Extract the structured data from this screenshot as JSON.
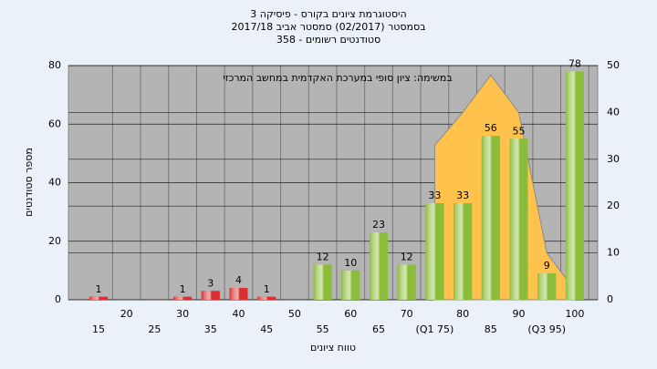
{
  "chart_data": {
    "type": "bar",
    "title": "היסטוגרמת ציונים בקורס - פיסיקה 3",
    "subtitle": "בסמסטר (02/2017) סמסטר אביב 2017/18",
    "subtitle2": "סטודנטים רשומים - 358",
    "annotation": "במשימה: ציון סופי במערכת האקדמית במחשב המרכזי",
    "y_label": "מספר סטודנטים",
    "x_label": "טווח ציונים",
    "categories": [
      "15",
      "20",
      "25",
      "30",
      "35",
      "40",
      "45",
      "50",
      "55",
      "60",
      "65",
      "70",
      "(Q1 75)",
      "80",
      "85",
      "90",
      "(Q3 95)",
      "100"
    ],
    "values": [
      1,
      null,
      null,
      1,
      3,
      4,
      1,
      null,
      12,
      10,
      23,
      12,
      33,
      33,
      56,
      55,
      9,
      78
    ],
    "colors": [
      "#d83030",
      null,
      null,
      "#d83030",
      "#d83030",
      "#d83030",
      "#d83030",
      null,
      "#8cbd3a",
      "#8cbd3a",
      "#8cbd3a",
      "#8cbd3a",
      "#8cbd3a",
      "#8cbd3a",
      "#8cbd3a",
      "#8cbd3a",
      "#8cbd3a",
      "#8cbd3a"
    ],
    "area": {
      "axis": "y2",
      "color": "#ffc34d",
      "values": [
        null,
        null,
        null,
        null,
        null,
        null,
        null,
        null,
        null,
        null,
        null,
        null,
        33,
        40,
        48,
        40,
        10,
        2
      ]
    },
    "ylim": [
      0,
      80
    ],
    "yticks": [
      0,
      20,
      40,
      60,
      80
    ],
    "y2lim": [
      0,
      50
    ],
    "y2ticks": [
      0,
      10,
      20,
      30,
      40,
      50
    ],
    "grid": true
  }
}
